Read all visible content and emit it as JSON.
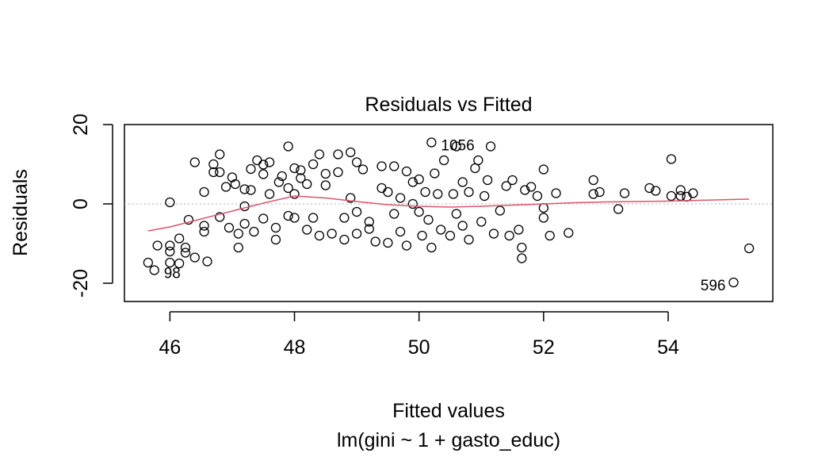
{
  "chart_data": {
    "type": "scatter",
    "title": "Residuals vs Fitted",
    "xlabel": "Fitted values",
    "subtitle": "lm(gini ~ 1 + gasto_educ)",
    "ylabel": "Residuals",
    "xlim": [
      45.27,
      55.68
    ],
    "ylim": [
      -24.6,
      20
    ],
    "xticks": [
      46,
      48,
      50,
      52,
      54
    ],
    "yticks": [
      -20,
      0,
      20
    ],
    "reference_line": {
      "y": 0,
      "color": "#bebebe"
    },
    "series": [
      {
        "type": "scatter",
        "color": "#000000",
        "x": [
          45.65,
          45.75,
          45.8,
          46.0,
          46.0,
          46.0,
          46.0,
          46.15,
          46.15,
          46.25,
          46.25,
          46.3,
          46.4,
          46.4,
          46.55,
          46.55,
          46.55,
          46.6,
          46.7,
          46.7,
          46.8,
          46.8,
          46.8,
          46.9,
          46.95,
          47.0,
          47.05,
          47.1,
          47.1,
          47.2,
          47.2,
          47.2,
          47.3,
          47.3,
          47.35,
          47.4,
          47.5,
          47.5,
          47.5,
          47.6,
          47.6,
          47.7,
          47.7,
          47.75,
          47.8,
          47.9,
          47.9,
          47.9,
          48.0,
          48.0,
          48.0,
          48.1,
          48.1,
          48.2,
          48.2,
          48.3,
          48.3,
          48.4,
          48.4,
          48.5,
          48.5,
          48.6,
          48.7,
          48.7,
          48.8,
          48.8,
          48.9,
          48.9,
          49.0,
          49.0,
          49.0,
          49.1,
          49.2,
          49.2,
          49.3,
          49.4,
          49.4,
          49.5,
          49.5,
          49.6,
          49.6,
          49.7,
          49.7,
          49.8,
          49.8,
          49.9,
          49.9,
          50.0,
          50.0,
          50.05,
          50.1,
          50.15,
          50.2,
          50.2,
          50.25,
          50.3,
          50.35,
          50.4,
          50.5,
          50.55,
          50.6,
          50.6,
          50.7,
          50.7,
          50.8,
          50.8,
          50.9,
          50.95,
          51.0,
          51.05,
          51.1,
          51.15,
          51.2,
          51.3,
          51.4,
          51.45,
          51.5,
          51.6,
          51.65,
          51.65,
          51.7,
          51.8,
          51.9,
          52.0,
          52.0,
          52.0,
          52.1,
          52.2,
          52.4,
          52.8,
          52.8,
          52.9,
          53.2,
          53.3,
          53.7,
          53.8,
          54.05,
          54.05,
          54.2,
          54.2,
          54.3,
          54.4,
          55.05,
          55.3
        ],
        "values": [
          -14.8,
          -16.7,
          -10.5,
          0.4,
          -10.5,
          -12,
          -14.8,
          -8.7,
          -15,
          -11,
          -12.3,
          -4,
          10.5,
          -13.5,
          3,
          -5.5,
          -7,
          -14.5,
          10,
          8,
          12.5,
          -3.3,
          8,
          4.3,
          -6,
          6.7,
          5,
          -11,
          -7.5,
          -5,
          3.7,
          -0.6,
          8.8,
          3.5,
          -7,
          11,
          7.5,
          9.9,
          -3.7,
          10.5,
          2.5,
          -9,
          -6,
          5.5,
          7,
          14.5,
          4,
          -3,
          9,
          -3.5,
          2.5,
          8.5,
          6.5,
          -6.5,
          5,
          -3.5,
          10,
          12.5,
          -8,
          4.7,
          7.6,
          -7.5,
          12.5,
          8,
          -3.5,
          -9,
          13,
          1.5,
          -2,
          10.5,
          -7.5,
          8.7,
          -6.3,
          -4.5,
          -9.5,
          9.5,
          4,
          -9.8,
          3,
          9.5,
          -2.5,
          -7,
          1.5,
          8.2,
          -10.5,
          5.5,
          0,
          -2,
          6.2,
          -8,
          3,
          -4,
          15.5,
          -11,
          7.7,
          2.5,
          -6.5,
          11,
          -8,
          2.5,
          14.5,
          -2.5,
          5.5,
          -5.5,
          -9,
          3,
          9,
          11,
          -4.5,
          2,
          6,
          14.5,
          -7.5,
          -1.7,
          4.5,
          -8,
          6,
          -6.5,
          -11,
          -13.7,
          3.5,
          4.3,
          2,
          8.7,
          -3.5,
          -1,
          -8,
          2.7,
          -7.3,
          6,
          2.5,
          3,
          -1.3,
          2.7,
          4,
          3.3,
          11.3,
          2,
          3.5,
          2,
          1.8,
          2.7,
          -19.8,
          -11.2
        ]
      },
      {
        "type": "line",
        "color": "#DF536B",
        "x": [
          45.65,
          46.0,
          46.5,
          47.0,
          47.5,
          48.0,
          48.5,
          49.0,
          49.5,
          50.0,
          50.5,
          51.0,
          51.5,
          52.0,
          52.5,
          53.0,
          53.5,
          54.0,
          54.5,
          55.0,
          55.3
        ],
        "values": [
          -6.8,
          -5.8,
          -3.8,
          -1.8,
          0.2,
          2,
          1.5,
          0.6,
          -0.2,
          -0.6,
          -0.8,
          -0.6,
          -0.3,
          0,
          0.3,
          0.5,
          0.6,
          0.7,
          0.9,
          1.1,
          1.2
        ]
      }
    ],
    "annotations": [
      {
        "text": "98",
        "x": 45.75,
        "y": -16.7
      },
      {
        "text": "1056",
        "x": 50.2,
        "y": 15.5
      },
      {
        "text": "596",
        "x": 55.05,
        "y": -19.8
      }
    ]
  }
}
